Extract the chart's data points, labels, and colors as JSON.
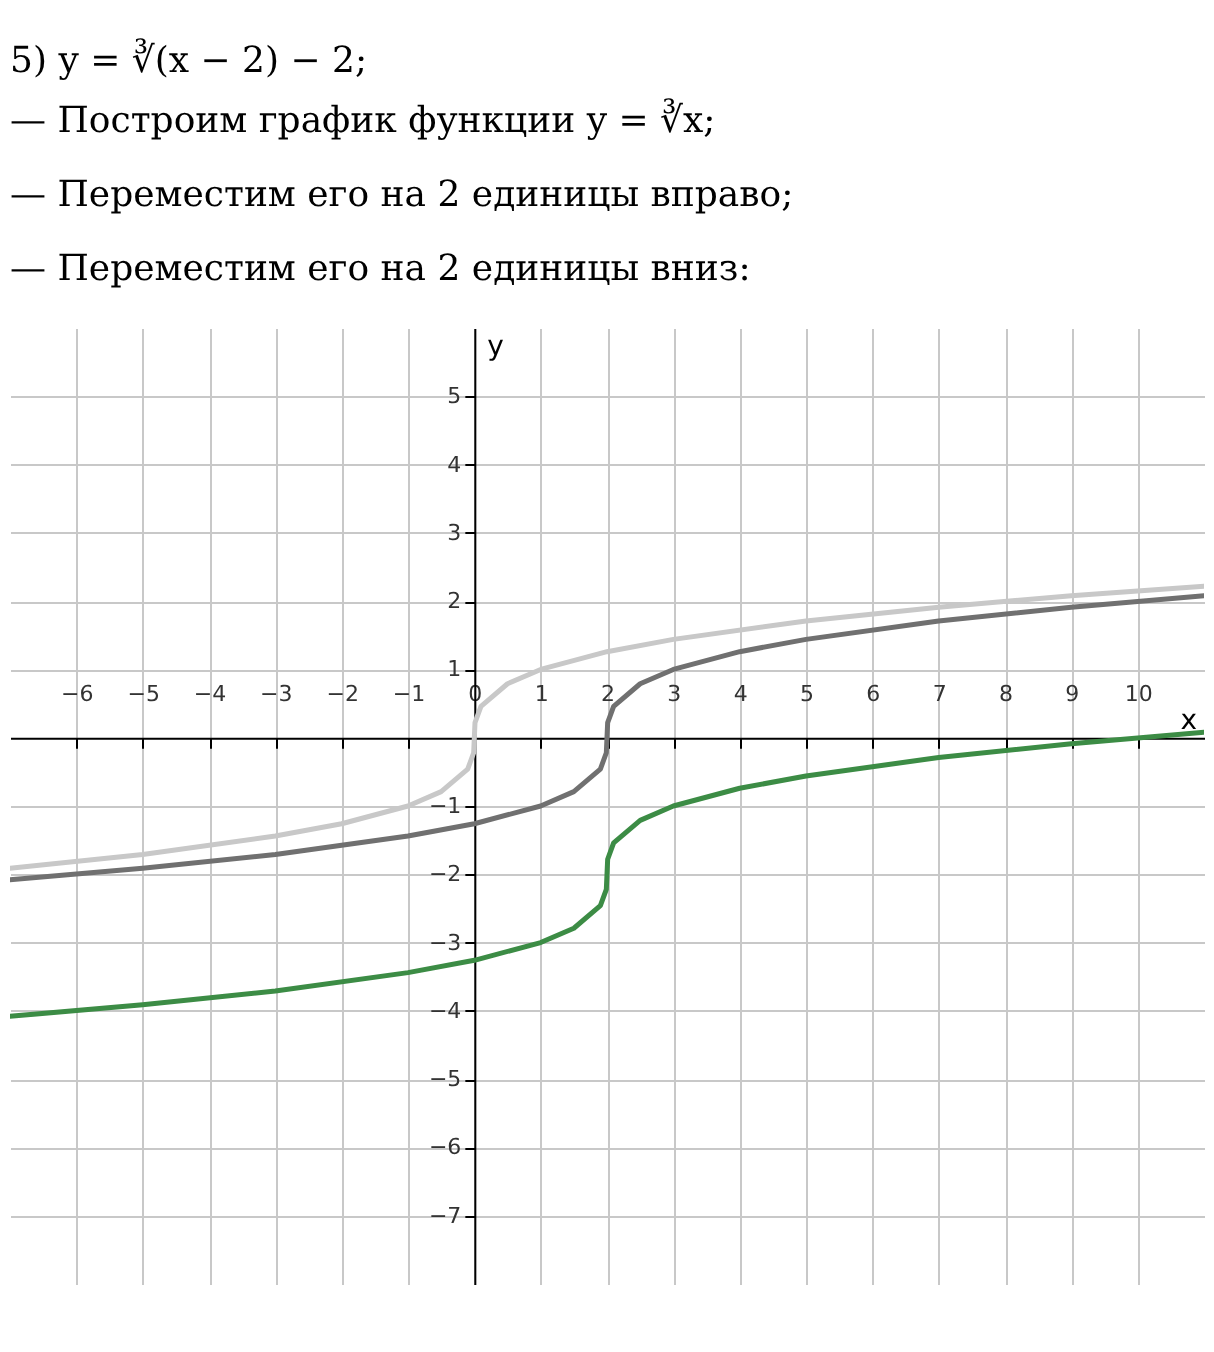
{
  "chart_data": {
    "type": "line",
    "title": "5) y = ∛(x − 2) − 2;",
    "annotations": [
      "— Построим график функции y = ∛x;",
      "— Переместим его на 2 единицы вправо;",
      "— Переместим его на 2 единицы вниз:"
    ],
    "xlabel": "x",
    "ylabel": "y",
    "xlim": [
      -7,
      11
    ],
    "ylim": [
      -8,
      6
    ],
    "xticks": [
      -6,
      -5,
      -4,
      -3,
      -2,
      -1,
      0,
      1,
      2,
      3,
      4,
      5,
      6,
      7,
      8,
      9,
      10
    ],
    "yticks": [
      -7,
      -6,
      -5,
      -4,
      -3,
      -2,
      -1,
      1,
      2,
      3,
      4,
      5
    ],
    "grid": true,
    "series": [
      {
        "color": "#c8c8c8",
        "x": [
          -7,
          -5,
          -3,
          -2,
          -1,
          -0.5,
          -0.1,
          -0.01,
          0,
          0.01,
          0.1,
          0.5,
          1,
          2,
          3,
          5,
          7,
          9,
          11
        ],
        "values": [
          -1.91,
          -1.71,
          -1.44,
          -1.26,
          -1,
          -0.79,
          -0.46,
          -0.22,
          0,
          0.22,
          0.46,
          0.79,
          1,
          1.26,
          1.44,
          1.71,
          1.91,
          2.08,
          2.22
        ]
      },
      {
        "color": "#707070",
        "x": [
          -7,
          -5,
          -3,
          -1,
          0,
          1,
          1.5,
          1.9,
          1.99,
          2,
          2.01,
          2.1,
          2.5,
          3,
          4,
          5,
          7,
          9,
          11
        ],
        "values": [
          -2.08,
          -1.91,
          -1.71,
          -1.44,
          -1.26,
          -1,
          -0.79,
          -0.46,
          -0.22,
          0,
          0.22,
          0.46,
          0.79,
          1,
          1.26,
          1.44,
          1.71,
          1.91,
          2.08
        ]
      },
      {
        "color": "#3c8c45",
        "x": [
          -7,
          -5,
          -3,
          -1,
          0,
          1,
          1.5,
          1.9,
          1.99,
          2,
          2.01,
          2.1,
          2.5,
          3,
          4,
          5,
          7,
          9,
          11
        ],
        "values": [
          -4.08,
          -3.91,
          -3.71,
          -3.44,
          -3.26,
          -3,
          -2.79,
          -2.46,
          -2.22,
          -2,
          -1.78,
          -1.54,
          -1.21,
          -1,
          -0.74,
          -0.56,
          -0.29,
          -0.09,
          0.08
        ]
      }
    ]
  }
}
